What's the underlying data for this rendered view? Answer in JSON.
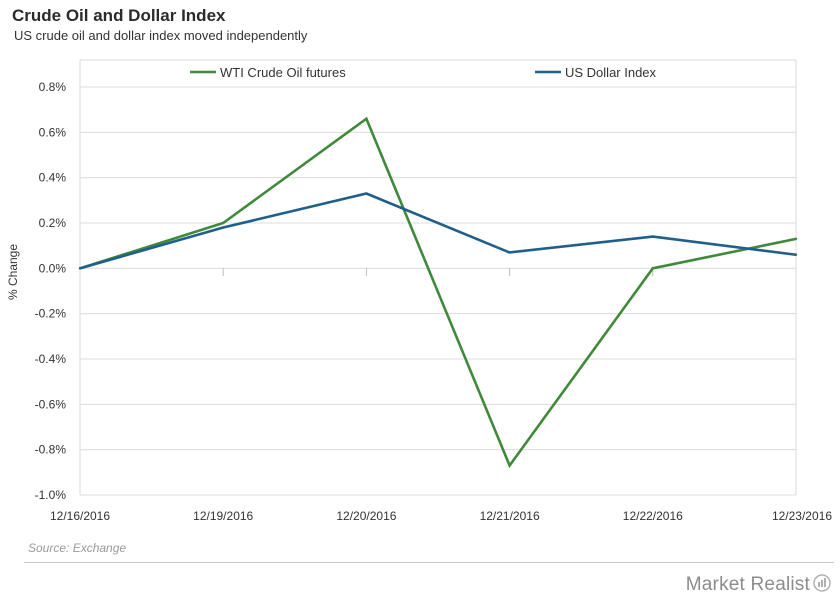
{
  "chart_data": {
    "type": "line",
    "title": "Crude Oil and Dollar Index",
    "subtitle": "US crude oil and dollar index moved independently",
    "ylabel": "% Change",
    "xlabel": "",
    "categories": [
      "12/16/2016",
      "12/19/2016",
      "12/20/2016",
      "12/21/2016",
      "12/22/2016",
      "12/23/2016"
    ],
    "ylim": [
      -1.0,
      0.8
    ],
    "yticks": [
      0.8,
      0.6,
      0.4,
      0.2,
      0.0,
      -0.2,
      -0.4,
      -0.6,
      -0.8,
      -1.0
    ],
    "ytick_labels": [
      "0.8%",
      "0.6%",
      "0.4%",
      "0.2%",
      "0.0%",
      "-0.2%",
      "-0.4%",
      "-0.6%",
      "-0.8%",
      "-1.0%"
    ],
    "grid": "horizontal",
    "legend_position": "top",
    "series": [
      {
        "name": "WTI Crude Oil futures",
        "color": "#3e8a3a",
        "values": [
          0.0,
          0.2,
          0.66,
          -0.87,
          0.0,
          0.13
        ]
      },
      {
        "name": "US Dollar Index",
        "color": "#1f5f8b",
        "values": [
          0.0,
          0.18,
          0.33,
          0.07,
          0.14,
          0.06
        ]
      }
    ]
  },
  "source_text": "Source: Exchange",
  "brand": "Market Realist"
}
